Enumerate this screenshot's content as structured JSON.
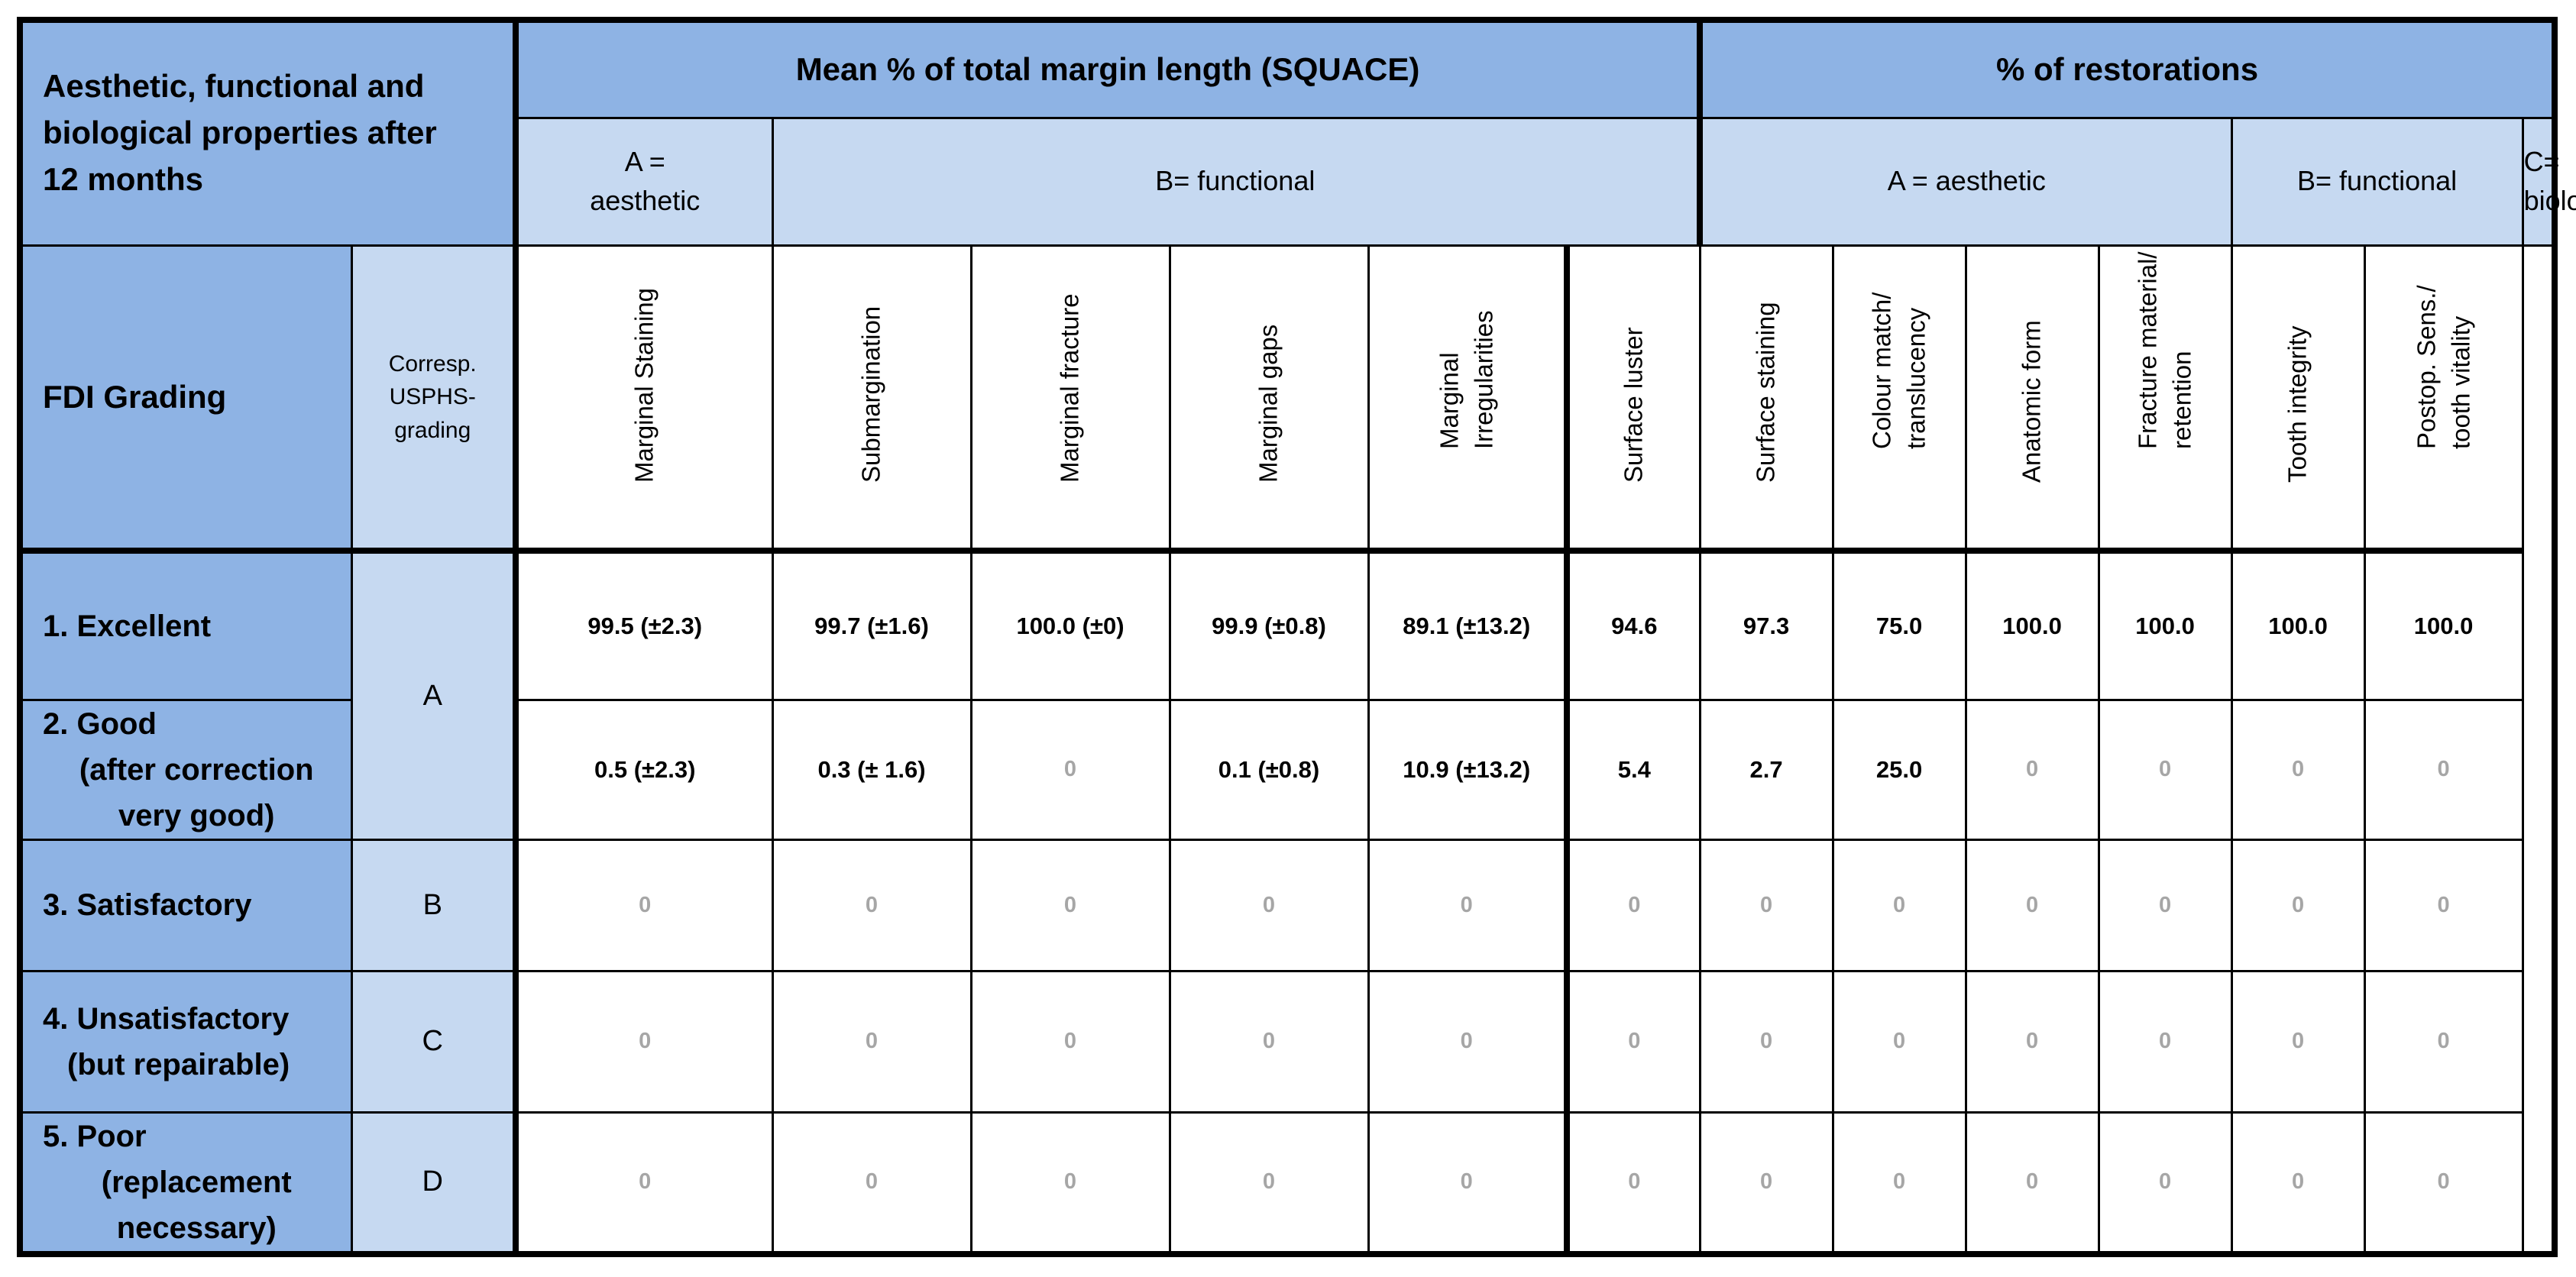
{
  "header": {
    "corner_title": [
      "Aesthetic, functional and",
      "biological properties after",
      "12 months"
    ],
    "group_squace": "Mean % of total margin length (SQUACE)",
    "group_restorations": "% of restorations",
    "sub_a_aesthetic_squace": [
      "A =",
      "aesthetic"
    ],
    "sub_b_functional_squace": "B= functional",
    "sub_a_aesthetic_rest": "A = aesthetic",
    "sub_b_functional_rest": "B= functional",
    "sub_c_biological": [
      "C=",
      "biological"
    ],
    "fdi_grading": "FDI Grading",
    "usphs_grading": [
      "Corresp.",
      "USPHS-",
      "grading"
    ]
  },
  "columns": [
    [
      "Marginal Staining"
    ],
    [
      "Submargination"
    ],
    [
      "Marginal fracture"
    ],
    [
      "Marginal gaps"
    ],
    [
      "Marginal",
      "Irregularities"
    ],
    [
      "Surface luster"
    ],
    [
      "Surface staining"
    ],
    [
      "Colour match/",
      "translucency"
    ],
    [
      "Anatomic form"
    ],
    [
      "Fracture material/",
      "retention"
    ],
    [
      "Tooth integrity"
    ],
    [
      "Postop. Sens./",
      "tooth vitality"
    ]
  ],
  "rows": [
    {
      "grade": [
        "1. Excellent"
      ],
      "usphs": "A",
      "values": [
        "99.5 (±2.3)",
        "99.7 (±1.6)",
        "100.0 (±0)",
        "99.9 (±0.8)",
        "89.1 (±13.2)",
        "94.6",
        "97.3",
        "75.0",
        "100.0",
        "100.0",
        "100.0",
        "100.0"
      ]
    },
    {
      "grade": [
        "2. Good",
        "(after correction",
        "very good)"
      ],
      "usphs": "",
      "values": [
        "0.5 (±2.3)",
        "0.3 (± 1.6)",
        "0",
        "0.1 (±0.8)",
        "10.9 (±13.2)",
        "5.4",
        "2.7",
        "25.0",
        "0",
        "0",
        "0",
        "0"
      ]
    },
    {
      "grade": [
        "3. Satisfactory"
      ],
      "usphs": "B",
      "values": [
        "0",
        "0",
        "0",
        "0",
        "0",
        "0",
        "0",
        "0",
        "0",
        "0",
        "0",
        "0"
      ]
    },
    {
      "grade": [
        "4. Unsatisfactory",
        "(but repairable)"
      ],
      "usphs": "C",
      "values": [
        "0",
        "0",
        "0",
        "0",
        "0",
        "0",
        "0",
        "0",
        "0",
        "0",
        "0",
        "0"
      ]
    },
    {
      "grade": [
        "5. Poor",
        "(replacement",
        "necessary)"
      ],
      "usphs": "D",
      "values": [
        "0",
        "0",
        "0",
        "0",
        "0",
        "0",
        "0",
        "0",
        "0",
        "0",
        "0",
        "0"
      ]
    }
  ]
}
